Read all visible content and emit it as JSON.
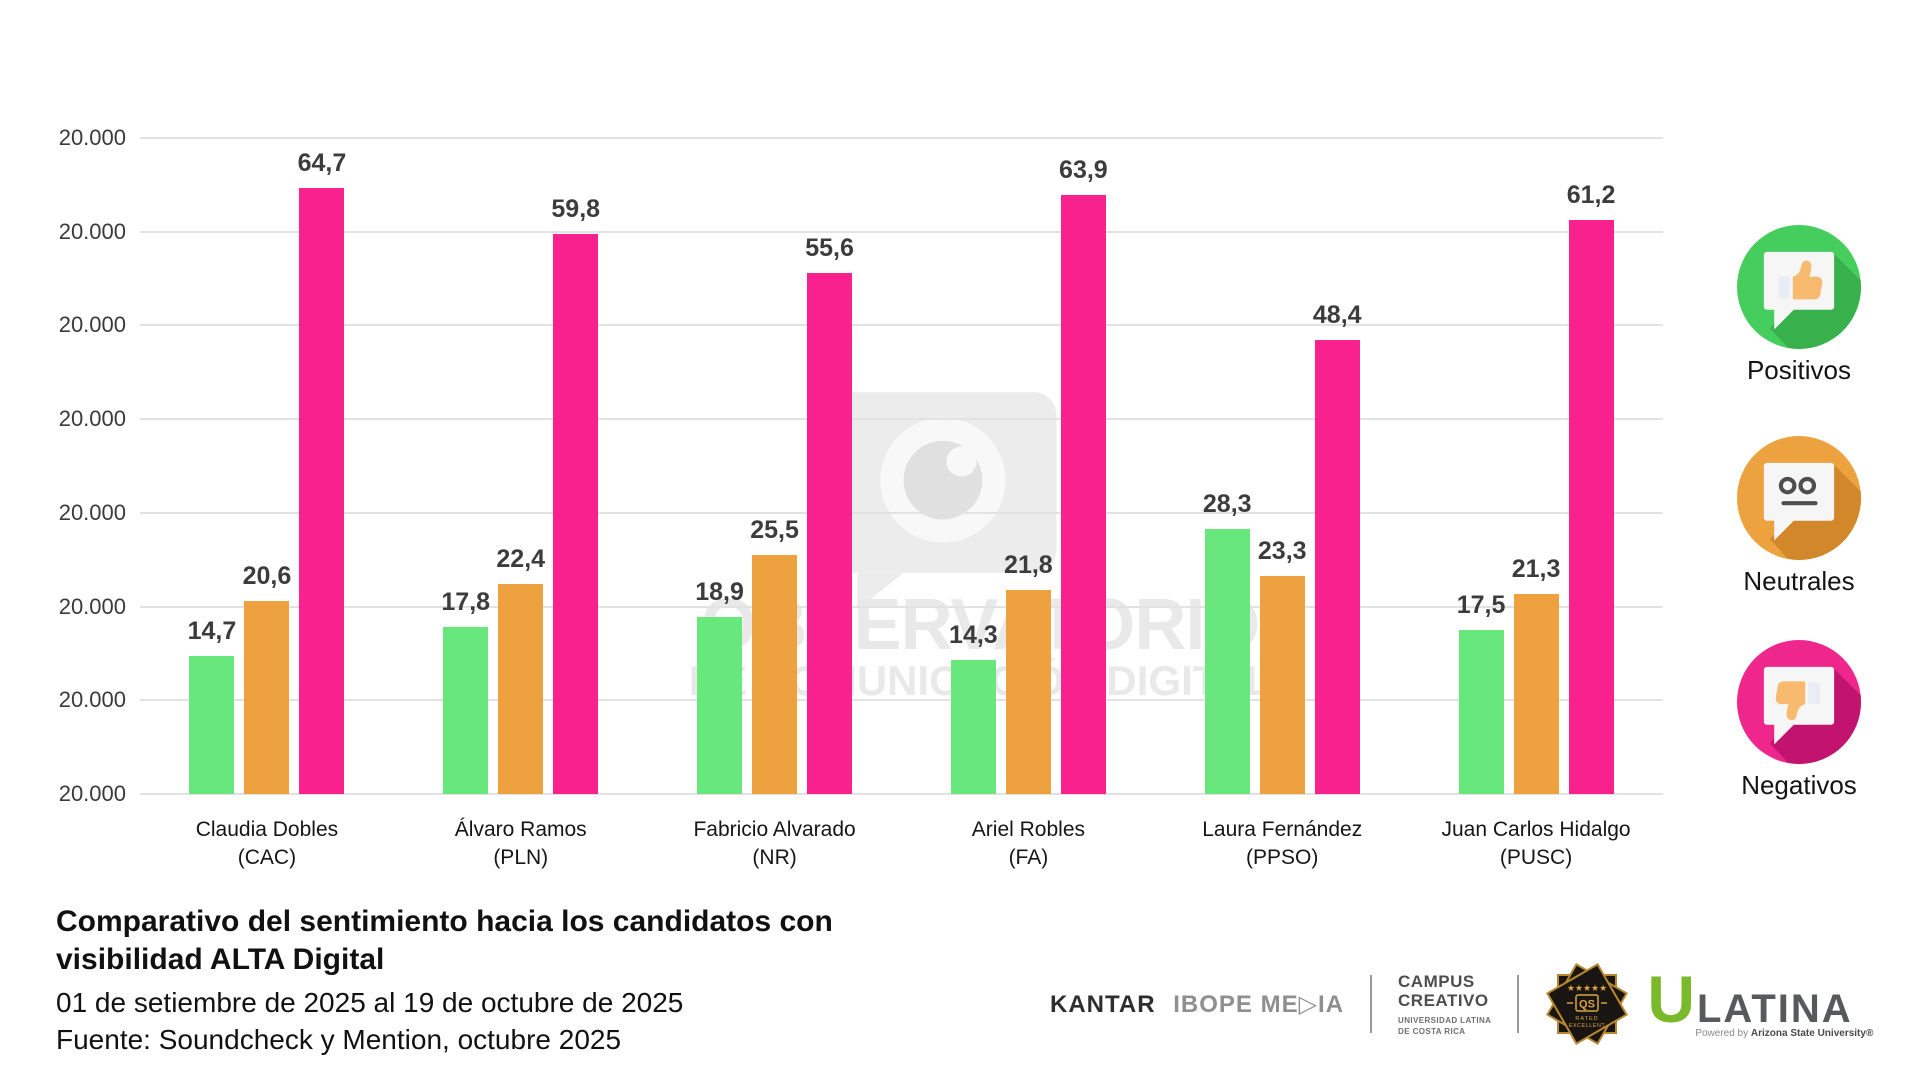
{
  "watermark": {
    "line1": "OBSERVATORIO",
    "line2": "DE COMUNICACIÓN DIGITAL"
  },
  "chart_data": {
    "type": "bar",
    "title": "Comparativo del sentimiento hacia los candidatos con visibilidad ALTA Digital",
    "categories": [
      {
        "name": "Claudia Dobles",
        "party": "(CAC)"
      },
      {
        "name": "Álvaro Ramos",
        "party": "(PLN)"
      },
      {
        "name": "Fabricio Alvarado",
        "party": "(NR)"
      },
      {
        "name": "Ariel Robles",
        "party": "(FA)"
      },
      {
        "name": "Laura Fernández",
        "party": "(PPSO)"
      },
      {
        "name": "Juan Carlos Hidalgo",
        "party": "(PUSC)"
      }
    ],
    "series": [
      {
        "name": "Positivos",
        "color": "#68E77C",
        "values": [
          14.7,
          17.8,
          18.9,
          14.3,
          28.3,
          17.5
        ],
        "labels": [
          "14,7",
          "17,8",
          "18,9",
          "14,3",
          "28,3",
          "17,5"
        ]
      },
      {
        "name": "Neutrales",
        "color": "#EEA13F",
        "values": [
          20.6,
          22.4,
          25.5,
          21.8,
          23.3,
          21.3
        ],
        "labels": [
          "20,6",
          "22,4",
          "25,5",
          "21,8",
          "23,3",
          "21,3"
        ]
      },
      {
        "name": "Negativos",
        "color": "#F8218D",
        "values": [
          64.7,
          59.8,
          55.6,
          63.9,
          48.4,
          61.2
        ],
        "labels": [
          "64,7",
          "59,8",
          "55,6",
          "63,9",
          "48,4",
          "61,2"
        ]
      }
    ],
    "y_axis": {
      "tick_labels": [
        "20.000",
        "20.000",
        "20.000",
        "20.000",
        "20.000",
        "20.000",
        "20.000",
        "20.000"
      ],
      "max": 70,
      "gridlines": true
    },
    "legend_position": "right"
  },
  "legend": {
    "items": [
      {
        "label": "Positivos",
        "icon": "thumbs-up-bubble",
        "circle_color": "#45CE5D",
        "shadow_color": "#38B04C",
        "glyph_color": "#F7BA6E"
      },
      {
        "label": "Neutrales",
        "icon": "neutral-face-bubble",
        "circle_color": "#EBA23F",
        "shadow_color": "#D2882A",
        "glyph_color": "#4E4E4E"
      },
      {
        "label": "Negativos",
        "icon": "thumbs-down-bubble",
        "circle_color": "#EF268C",
        "shadow_color": "#C2146F",
        "glyph_color": "#F7BA6E"
      }
    ]
  },
  "footer": {
    "title_lines": [
      "Comparativo del sentimiento hacia los candidatos con",
      "visibilidad ALTA Digital"
    ],
    "period": "01 de setiembre de 2025 al 19 de octubre de 2025",
    "source": "Fuente: Soundcheck y Mention, octubre 2025"
  },
  "logos": {
    "kantar": {
      "primary": "KANTAR",
      "secondary": "IBOPE ME▷IA"
    },
    "campus": {
      "line1": "CAMPUS",
      "line2": "CREATIVO",
      "line3": "UNIVERSIDAD LATINA",
      "line4": "DE COSTA RICA"
    },
    "qs_badge": {
      "stars": "★★★★★",
      "label": "QS",
      "line1": "RATED",
      "line2": "EXCELLENT"
    },
    "ulatina": {
      "u": "U",
      "name": "LATINA",
      "powered_prefix": "Powered by",
      "powered_brand": "Arizona State University®"
    }
  }
}
